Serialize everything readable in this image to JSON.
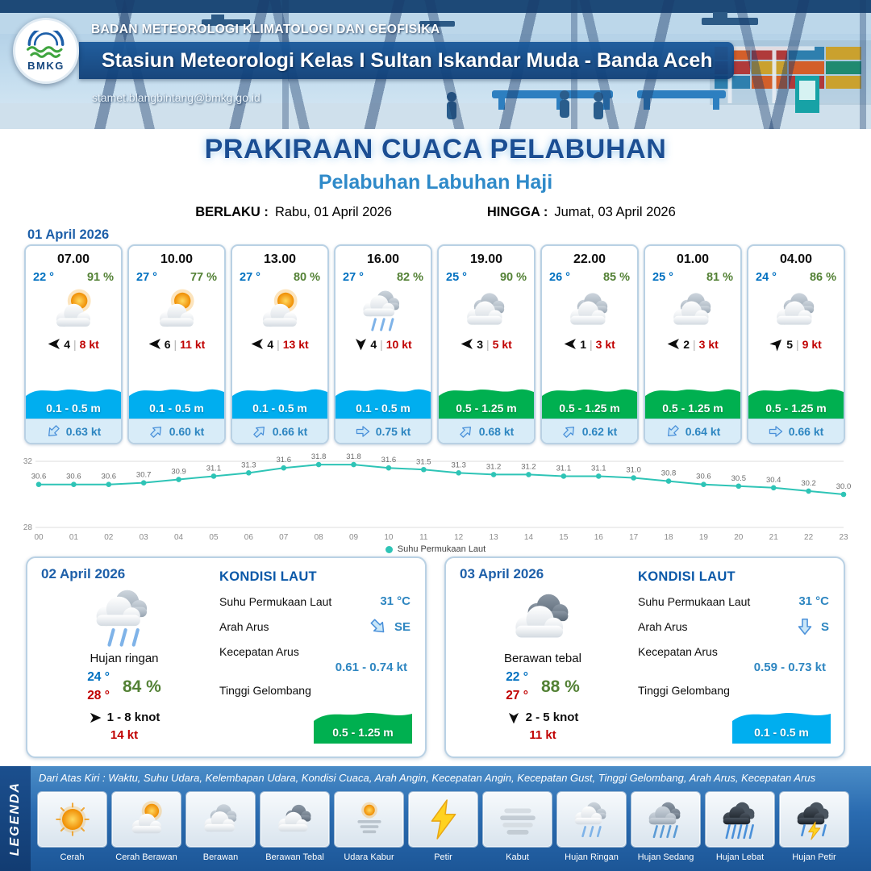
{
  "header": {
    "agency": "BADAN METEOROLOGI KLIMATOLOGI DAN GEOFISIKA",
    "station": "Stasiun Meteorologi Kelas I Sultan Iskandar Muda - Banda Aceh",
    "email": "stamet.blangbintang@bmkg.go.id",
    "logo_text": "BMKG"
  },
  "title": {
    "main": "PRAKIRAAN CUACA PELABUHAN",
    "subtitle": "Pelabuhan Labuhan Haji",
    "berlaku_label": "BERLAKU :",
    "berlaku_value": "Rabu, 01 April 2026",
    "hingga_label": "HINGGA :",
    "hingga_value": "Jumat, 03 April 2026"
  },
  "forecast": {
    "date": "01 April 2026",
    "cards": [
      {
        "time": "07.00",
        "temp": "22 °",
        "humidity": "91 %",
        "icon": "cerah-berawan",
        "wind_dir_deg": 180,
        "wind_speed": "4",
        "gust": "8 kt",
        "wave": "0.1 - 0.5 m",
        "wave_color": "#00aeef",
        "current_dir_deg": 135,
        "current": "0.63 kt"
      },
      {
        "time": "10.00",
        "temp": "27 °",
        "humidity": "77 %",
        "icon": "cerah-berawan",
        "wind_dir_deg": 180,
        "wind_speed": "6",
        "gust": "11 kt",
        "wave": "0.1 - 0.5 m",
        "wave_color": "#00aeef",
        "current_dir_deg": -45,
        "current": "0.60 kt"
      },
      {
        "time": "13.00",
        "temp": "27 °",
        "humidity": "80 %",
        "icon": "cerah-berawan",
        "wind_dir_deg": 180,
        "wind_speed": "4",
        "gust": "13 kt",
        "wave": "0.1 - 0.5 m",
        "wave_color": "#00aeef",
        "current_dir_deg": -45,
        "current": "0.66 kt"
      },
      {
        "time": "16.00",
        "temp": "27 °",
        "humidity": "82 %",
        "icon": "hujan-ringan",
        "wind_dir_deg": 90,
        "wind_speed": "4",
        "gust": "10 kt",
        "wave": "0.1 - 0.5 m",
        "wave_color": "#00aeef",
        "current_dir_deg": 0,
        "current": "0.75 kt"
      },
      {
        "time": "19.00",
        "temp": "25 °",
        "humidity": "90 %",
        "icon": "berawan",
        "wind_dir_deg": 180,
        "wind_speed": "3",
        "gust": "5 kt",
        "wave": "0.5 - 1.25 m",
        "wave_color": "#00b050",
        "current_dir_deg": -45,
        "current": "0.68 kt"
      },
      {
        "time": "22.00",
        "temp": "26 °",
        "humidity": "85 %",
        "icon": "berawan",
        "wind_dir_deg": 180,
        "wind_speed": "1",
        "gust": "3 kt",
        "wave": "0.5 - 1.25 m",
        "wave_color": "#00b050",
        "current_dir_deg": -45,
        "current": "0.62 kt"
      },
      {
        "time": "01.00",
        "temp": "25 °",
        "humidity": "81 %",
        "icon": "berawan",
        "wind_dir_deg": 180,
        "wind_speed": "2",
        "gust": "3 kt",
        "wave": "0.5 - 1.25 m",
        "wave_color": "#00b050",
        "current_dir_deg": 135,
        "current": "0.64 kt"
      },
      {
        "time": "04.00",
        "temp": "24 °",
        "humidity": "86 %",
        "icon": "berawan",
        "wind_dir_deg": -45,
        "wind_speed": "5",
        "gust": "9 kt",
        "wave": "0.5 - 1.25 m",
        "wave_color": "#00b050",
        "current_dir_deg": 0,
        "current": "0.66 kt"
      }
    ]
  },
  "chart_data": {
    "type": "line",
    "x": [
      "00",
      "01",
      "02",
      "03",
      "04",
      "05",
      "06",
      "07",
      "08",
      "09",
      "10",
      "11",
      "12",
      "13",
      "14",
      "15",
      "16",
      "17",
      "18",
      "19",
      "20",
      "21",
      "22",
      "23"
    ],
    "series": [
      {
        "name": "Suhu Permukaan Laut",
        "values": [
          30.6,
          30.6,
          30.6,
          30.7,
          30.9,
          31.1,
          31.3,
          31.6,
          31.8,
          31.8,
          31.6,
          31.5,
          31.3,
          31.2,
          31.2,
          31.1,
          31.1,
          31.0,
          30.8,
          30.6,
          30.5,
          30.4,
          30.2,
          30.0
        ]
      }
    ],
    "ylim": [
      28,
      32
    ],
    "line_color": "#2ec4b6",
    "legend_position": "bottom"
  },
  "daily": [
    {
      "date": "02 April 2026",
      "icon": "hujan-ringan",
      "condition": "Hujan ringan",
      "temp_min": "24 °",
      "temp_max": "28 °",
      "humidity": "84 %",
      "wind_dir_deg": 0,
      "wind_range": "1 - 8 knot",
      "gust": "14 kt",
      "sea": {
        "heading": "KONDISI LAUT",
        "sst_label": "Suhu Permukaan Laut",
        "sst": "31 °C",
        "arah_label": "Arah Arus",
        "arah_deg": 45,
        "arah": "SE",
        "kecepatan_label": "Kecepatan Arus",
        "kecepatan": "0.61 - 0.74 kt",
        "gelombang_label": "Tinggi Gelombang",
        "gelombang": "0.5 - 1.25 m",
        "gelombang_color": "#00b050"
      }
    },
    {
      "date": "03 April 2026",
      "icon": "berawan-tebal",
      "condition": "Berawan tebal",
      "temp_min": "22 °",
      "temp_max": "27 °",
      "humidity": "88 %",
      "wind_dir_deg": 90,
      "wind_range": "2 - 5 knot",
      "gust": "11 kt",
      "sea": {
        "heading": "KONDISI LAUT",
        "sst_label": "Suhu Permukaan Laut",
        "sst": "31 °C",
        "arah_label": "Arah Arus",
        "arah_deg": 90,
        "arah": "S",
        "kecepatan_label": "Kecepatan Arus",
        "kecepatan": "0.59 - 0.73 kt",
        "gelombang_label": "Tinggi Gelombang",
        "gelombang": "0.1 - 0.5 m",
        "gelombang_color": "#00aeef"
      }
    }
  ],
  "legend": {
    "title": "LEGENDA",
    "description": "Dari Atas Kiri : Waktu, Suhu Udara, Kelembapan Udara, Kondisi Cuaca, Arah Angin, Kecepatan Angin, Kecepatan Gust, Tinggi Gelombang, Arah Arus, Kecepatan Arus",
    "items": [
      {
        "icon": "cerah",
        "label": "Cerah"
      },
      {
        "icon": "cerah-berawan",
        "label": "Cerah Berawan"
      },
      {
        "icon": "berawan",
        "label": "Berawan"
      },
      {
        "icon": "berawan-tebal",
        "label": "Berawan Tebal"
      },
      {
        "icon": "udara-kabur",
        "label": "Udara Kabur"
      },
      {
        "icon": "petir",
        "label": "Petir"
      },
      {
        "icon": "kabut",
        "label": "Kabut"
      },
      {
        "icon": "hujan-ringan",
        "label": "Hujan Ringan"
      },
      {
        "icon": "hujan-sedang",
        "label": "Hujan Sedang"
      },
      {
        "icon": "hujan-lebat",
        "label": "Hujan Lebat"
      },
      {
        "icon": "hujan-petir",
        "label": "Hujan Petir"
      }
    ]
  },
  "colors": {
    "temp_blue": "#0070c0",
    "humidity_green": "#538135",
    "gust_red": "#c00000",
    "wave_blue": "#00aeef",
    "wave_green": "#00b050",
    "accent_blue": "#1d5fa9",
    "chart_teal": "#2ec4b6"
  }
}
